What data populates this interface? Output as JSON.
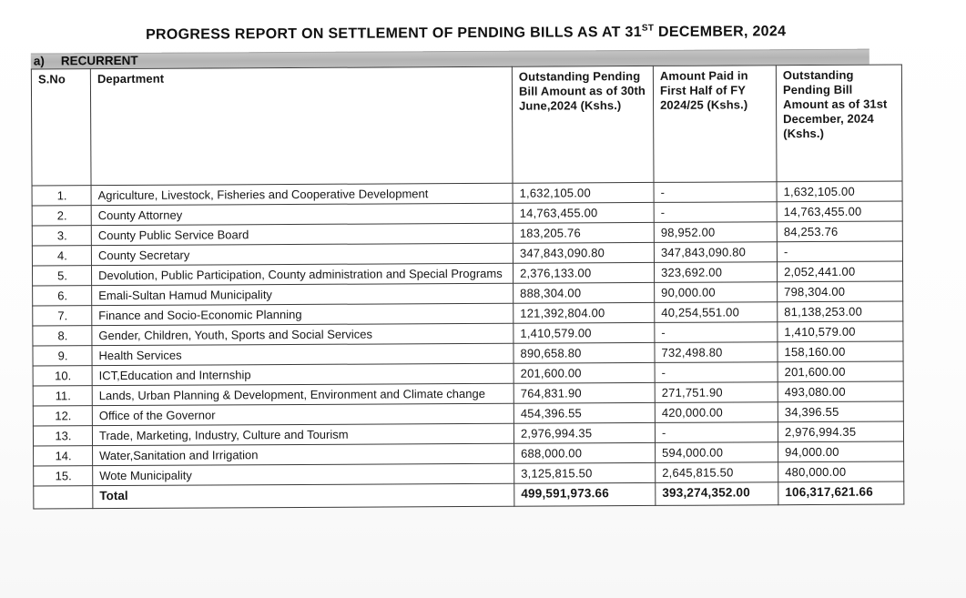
{
  "page": {
    "title": {
      "prefix": "PROGRESS REPORT ON SETTLEMENT OF PENDING BILLS AS AT 31",
      "sup": "ST",
      "suffix": " DECEMBER, 2024"
    },
    "section": {
      "prefix": "a)",
      "label": "RECURRENT"
    }
  },
  "table": {
    "headers": [
      "S.No",
      "Department",
      "Outstanding Pending Bill Amount as of 30th June,2024 (Kshs.)",
      "Amount Paid in First Half of FY 2024/25  (Kshs.)",
      "Outstanding Pending Bill Amount as of 31st December, 2024 (Kshs.)"
    ],
    "rows": [
      {
        "sno": "1.",
        "department": "Agriculture, Livestock, Fisheries and Cooperative Development",
        "outstanding_june": "1,632,105.00",
        "paid_first_half": "-",
        "outstanding_december": "1,632,105.00"
      },
      {
        "sno": "2.",
        "department": "County Attorney",
        "outstanding_june": "14,763,455.00",
        "paid_first_half": "-",
        "outstanding_december": "14,763,455.00"
      },
      {
        "sno": "3.",
        "department": "County Public Service Board",
        "outstanding_june": "183,205.76",
        "paid_first_half": "98,952.00",
        "outstanding_december": "84,253.76"
      },
      {
        "sno": "4.",
        "department": "County Secretary",
        "outstanding_june": "347,843,090.80",
        "paid_first_half": "347,843,090.80",
        "outstanding_december": "-"
      },
      {
        "sno": "5.",
        "department": "Devolution, Public Participation, County administration and Special Programs",
        "outstanding_june": "2,376,133.00",
        "paid_first_half": "323,692.00",
        "outstanding_december": "2,052,441.00"
      },
      {
        "sno": "6.",
        "department": "Emali-Sultan Hamud Municipality",
        "outstanding_june": "888,304.00",
        "paid_first_half": "90,000.00",
        "outstanding_december": "798,304.00"
      },
      {
        "sno": "7.",
        "department": "Finance and Socio-Economic Planning",
        "outstanding_june": "121,392,804.00",
        "paid_first_half": "40,254,551.00",
        "outstanding_december": "81,138,253.00"
      },
      {
        "sno": "8.",
        "department": "Gender, Children, Youth, Sports and Social Services",
        "outstanding_june": "1,410,579.00",
        "paid_first_half": "-",
        "outstanding_december": "1,410,579.00"
      },
      {
        "sno": "9.",
        "department": "Health Services",
        "outstanding_june": "890,658.80",
        "paid_first_half": "732,498.80",
        "outstanding_december": "158,160.00"
      },
      {
        "sno": "10.",
        "department": "ICT,Education and Internship",
        "outstanding_june": "201,600.00",
        "paid_first_half": "-",
        "outstanding_december": "201,600.00"
      },
      {
        "sno": "11.",
        "department": "Lands, Urban Planning & Development, Environment and Climate change",
        "outstanding_june": "764,831.90",
        "paid_first_half": "271,751.90",
        "outstanding_december": "493,080.00"
      },
      {
        "sno": "12.",
        "department": "Office of the Governor",
        "outstanding_june": "454,396.55",
        "paid_first_half": "420,000.00",
        "outstanding_december": "34,396.55"
      },
      {
        "sno": "13.",
        "department": "Trade, Marketing, Industry, Culture and Tourism",
        "outstanding_june": "2,976,994.35",
        "paid_first_half": "-",
        "outstanding_december": "2,976,994.35"
      },
      {
        "sno": "14.",
        "department": "Water,Sanitation and Irrigation",
        "outstanding_june": "688,000.00",
        "paid_first_half": "594,000.00",
        "outstanding_december": "94,000.00"
      },
      {
        "sno": "15.",
        "department": "Wote Municipality",
        "outstanding_june": "3,125,815.50",
        "paid_first_half": "2,645,815.50",
        "outstanding_december": "480,000.00"
      }
    ],
    "total": {
      "sno": "",
      "label": "Total",
      "outstanding_june": "499,591,973.66",
      "paid_first_half": "393,274,352.00",
      "outstanding_december": "106,317,621.66"
    }
  }
}
